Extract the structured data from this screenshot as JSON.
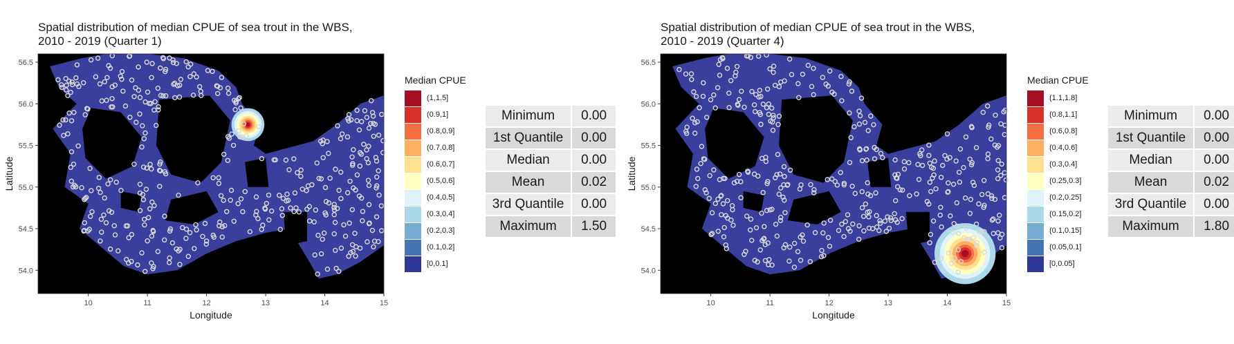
{
  "panels": [
    {
      "title_line1": "Spatial distribution of median CPUE of sea trout in the WBS,",
      "title_line2": "2010 - 2019 (Quarter 1)",
      "xlabel": "Longitude",
      "ylabel": "Latitude",
      "x_ticks": [
        "10",
        "11",
        "12",
        "13",
        "14",
        "15"
      ],
      "y_ticks": [
        "56.5",
        "56.0",
        "55.5",
        "55.0",
        "54.5",
        "54.0"
      ],
      "legend_title": "Median CPUE",
      "legend": [
        {
          "label": "(1,1.5]",
          "color": "#a50f26"
        },
        {
          "label": "(0.9,1]",
          "color": "#d73027"
        },
        {
          "label": "(0.8,0.9]",
          "color": "#f46d43"
        },
        {
          "label": "(0.7,0.8]",
          "color": "#fdae61"
        },
        {
          "label": "(0.6,0.7]",
          "color": "#fee090"
        },
        {
          "label": "(0.5,0.6]",
          "color": "#ffffbf"
        },
        {
          "label": "(0.4,0.5]",
          "color": "#e0f3f8"
        },
        {
          "label": "(0.3,0.4]",
          "color": "#abd9e9"
        },
        {
          "label": "(0.2,0.3]",
          "color": "#74add1"
        },
        {
          "label": "(0.1,0.2]",
          "color": "#4575b4"
        },
        {
          "label": "[0,0.1]",
          "color": "#313695"
        }
      ],
      "stats": [
        {
          "name": "Minimum",
          "value": "0.00"
        },
        {
          "name": "1st Quantile",
          "value": "0.00"
        },
        {
          "name": "Median",
          "value": "0.00"
        },
        {
          "name": "Mean",
          "value": "0.02"
        },
        {
          "name": "3rd Quantile",
          "value": "0.00"
        },
        {
          "name": "Maximum",
          "value": "1.50"
        }
      ],
      "hotspot": {
        "lon": 12.7,
        "lat": 55.75
      }
    },
    {
      "title_line1": "Spatial distribution of median CPUE of sea trout in the WBS,",
      "title_line2": "2010 - 2019 (Quarter 4)",
      "xlabel": "Longitude",
      "ylabel": "Latitude",
      "x_ticks": [
        "10",
        "11",
        "12",
        "13",
        "14",
        "15"
      ],
      "y_ticks": [
        "56.5",
        "56.0",
        "55.5",
        "55.0",
        "54.5",
        "54.0"
      ],
      "legend_title": "Median CPUE",
      "legend": [
        {
          "label": "(1.1,1.8]",
          "color": "#a50f26"
        },
        {
          "label": "(0.8,1.1]",
          "color": "#d73027"
        },
        {
          "label": "(0.6,0.8]",
          "color": "#f46d43"
        },
        {
          "label": "(0.4,0.6]",
          "color": "#fdae61"
        },
        {
          "label": "(0.3,0.4]",
          "color": "#fee090"
        },
        {
          "label": "(0.25,0.3]",
          "color": "#ffffbf"
        },
        {
          "label": "(0.2,0.25]",
          "color": "#e0f3f8"
        },
        {
          "label": "(0.15,0.2]",
          "color": "#abd9e9"
        },
        {
          "label": "(0.1,0.15]",
          "color": "#74add1"
        },
        {
          "label": "(0.05,0.1]",
          "color": "#4575b4"
        },
        {
          "label": "[0,0.05]",
          "color": "#313695"
        }
      ],
      "stats": [
        {
          "name": "Minimum",
          "value": "0.00"
        },
        {
          "name": "1st Quantile",
          "value": "0.00"
        },
        {
          "name": "Median",
          "value": "0.00"
        },
        {
          "name": "Mean",
          "value": "0.02"
        },
        {
          "name": "3rd Quantile",
          "value": "0.00"
        },
        {
          "name": "Maximum",
          "value": "1.80"
        }
      ],
      "hotspot": {
        "lon": 14.3,
        "lat": 54.2
      }
    }
  ],
  "colors": {
    "land": "#000000",
    "sea": "#3a3f9e",
    "station_point": "#d9d9d9"
  }
}
